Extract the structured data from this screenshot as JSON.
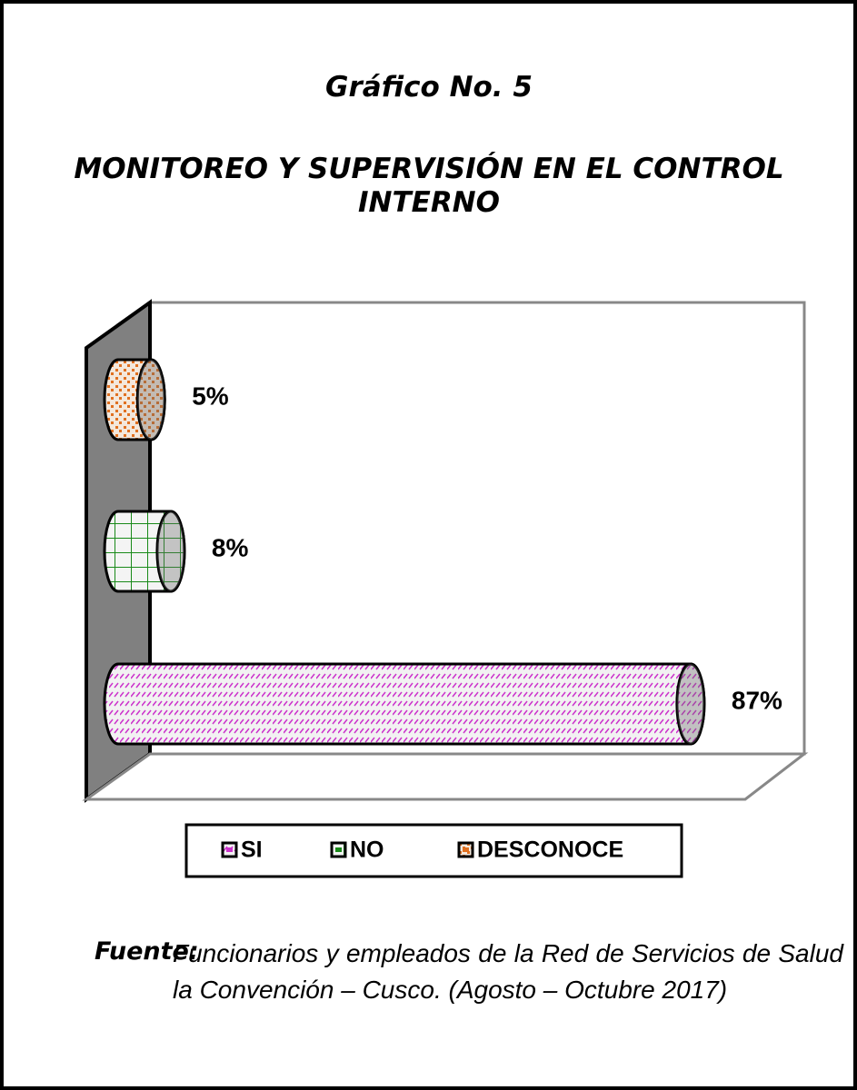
{
  "chart_data": {
    "type": "bar",
    "orientation": "horizontal",
    "title": "Gráfico No. 5",
    "subtitle": "MONITOREO Y SUPERVISIÓN EN EL CONTROL INTERNO",
    "categories": [
      "SI",
      "NO",
      "DESCONOCE"
    ],
    "values": [
      87,
      8,
      5
    ],
    "value_labels": [
      "87%",
      "8%",
      "5%"
    ],
    "colors": [
      "#cc33cc",
      "#1a8a1a",
      "#e07020"
    ],
    "legend": "bottom",
    "source_label": "Fuente:",
    "source_text": "Funcionarios y empleados de la Red de Servicios de Salud la Convención – Cusco. (Agosto – Octubre 2017)"
  }
}
